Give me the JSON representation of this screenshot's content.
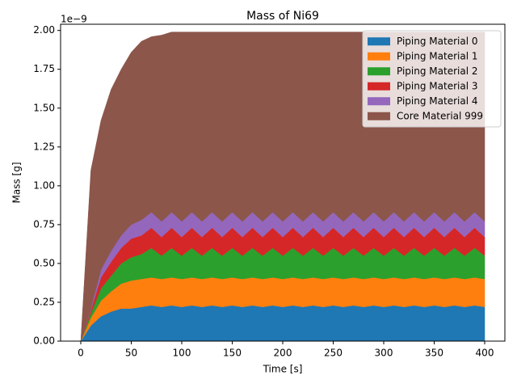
{
  "chart_data": {
    "type": "stackplot",
    "title": "Mass of Ni69",
    "xlabel": "Time [s]",
    "ylabel": "Mass [g]",
    "y_offset_text": "1e−9",
    "x": [
      0,
      10,
      20,
      30,
      40,
      50,
      60,
      70,
      80,
      90,
      100,
      110,
      120,
      130,
      140,
      150,
      160,
      170,
      180,
      190,
      200,
      210,
      220,
      230,
      240,
      250,
      260,
      270,
      280,
      290,
      300,
      310,
      320,
      330,
      340,
      350,
      360,
      370,
      380,
      390,
      400
    ],
    "series": [
      {
        "name": "Piping Material 0",
        "color": "#1f77b4",
        "values": [
          0,
          0.1,
          0.16,
          0.19,
          0.21,
          0.21,
          0.22,
          0.23,
          0.22,
          0.23,
          0.22,
          0.23,
          0.22,
          0.23,
          0.22,
          0.23,
          0.22,
          0.23,
          0.22,
          0.23,
          0.22,
          0.23,
          0.22,
          0.23,
          0.22,
          0.23,
          0.22,
          0.23,
          0.22,
          0.23,
          0.22,
          0.23,
          0.22,
          0.23,
          0.22,
          0.23,
          0.22,
          0.23,
          0.22,
          0.23,
          0.22
        ]
      },
      {
        "name": "Piping Material 1",
        "color": "#ff7f0e",
        "values": [
          0,
          0.05,
          0.1,
          0.13,
          0.16,
          0.18,
          0.18,
          0.18,
          0.18,
          0.18,
          0.18,
          0.18,
          0.18,
          0.18,
          0.18,
          0.18,
          0.18,
          0.18,
          0.18,
          0.18,
          0.18,
          0.18,
          0.18,
          0.18,
          0.18,
          0.18,
          0.18,
          0.18,
          0.18,
          0.18,
          0.18,
          0.18,
          0.18,
          0.18,
          0.18,
          0.18,
          0.18,
          0.18,
          0.18,
          0.18,
          0.18
        ]
      },
      {
        "name": "Piping Material 2",
        "color": "#2ca02c",
        "values": [
          0,
          0.03,
          0.08,
          0.1,
          0.13,
          0.15,
          0.16,
          0.19,
          0.15,
          0.19,
          0.15,
          0.19,
          0.15,
          0.19,
          0.15,
          0.19,
          0.15,
          0.19,
          0.15,
          0.19,
          0.15,
          0.19,
          0.15,
          0.19,
          0.15,
          0.19,
          0.15,
          0.19,
          0.15,
          0.19,
          0.15,
          0.19,
          0.15,
          0.19,
          0.15,
          0.19,
          0.15,
          0.19,
          0.15,
          0.19,
          0.15
        ]
      },
      {
        "name": "Piping Material 3",
        "color": "#d62728",
        "values": [
          0,
          0.02,
          0.07,
          0.09,
          0.1,
          0.12,
          0.12,
          0.13,
          0.12,
          0.13,
          0.12,
          0.13,
          0.12,
          0.13,
          0.12,
          0.13,
          0.12,
          0.13,
          0.12,
          0.13,
          0.12,
          0.13,
          0.12,
          0.13,
          0.12,
          0.13,
          0.12,
          0.13,
          0.12,
          0.13,
          0.12,
          0.13,
          0.12,
          0.13,
          0.12,
          0.13,
          0.12,
          0.13,
          0.12,
          0.13,
          0.12
        ]
      },
      {
        "name": "Piping Material 4",
        "color": "#9467bd",
        "values": [
          0,
          0.01,
          0.05,
          0.07,
          0.08,
          0.09,
          0.1,
          0.1,
          0.1,
          0.1,
          0.1,
          0.1,
          0.1,
          0.1,
          0.1,
          0.1,
          0.1,
          0.1,
          0.1,
          0.1,
          0.1,
          0.1,
          0.1,
          0.1,
          0.1,
          0.1,
          0.1,
          0.1,
          0.1,
          0.1,
          0.1,
          0.1,
          0.1,
          0.1,
          0.1,
          0.1,
          0.1,
          0.1,
          0.1,
          0.1,
          0.1
        ]
      },
      {
        "name": "Core Material 999",
        "color": "#8c564b",
        "values": [
          0,
          0.89,
          0.96,
          1.04,
          1.07,
          1.11,
          1.15,
          1.13,
          1.2,
          1.16,
          1.22,
          1.16,
          1.22,
          1.16,
          1.22,
          1.16,
          1.22,
          1.16,
          1.22,
          1.16,
          1.22,
          1.16,
          1.22,
          1.16,
          1.22,
          1.16,
          1.22,
          1.16,
          1.22,
          1.16,
          1.22,
          1.16,
          1.22,
          1.16,
          1.22,
          1.16,
          1.22,
          1.16,
          1.22,
          1.16,
          1.22
        ]
      }
    ],
    "xlim": [
      -20,
      420
    ],
    "xticks": [
      0,
      50,
      100,
      150,
      200,
      250,
      300,
      350,
      400
    ],
    "ylim": [
      0,
      2.04
    ],
    "yticks": [
      {
        "value": 0,
        "label": "0.00"
      },
      {
        "value": 0.25,
        "label": "0.25"
      },
      {
        "value": 0.5,
        "label": "0.50"
      },
      {
        "value": 0.75,
        "label": "0.75"
      },
      {
        "value": 1,
        "label": "1.00"
      },
      {
        "value": 1.25,
        "label": "1.25"
      },
      {
        "value": 1.5,
        "label": "1.50"
      },
      {
        "value": 1.75,
        "label": "1.75"
      },
      {
        "value": 2,
        "label": "2.00"
      }
    ],
    "legend": "upper right"
  }
}
